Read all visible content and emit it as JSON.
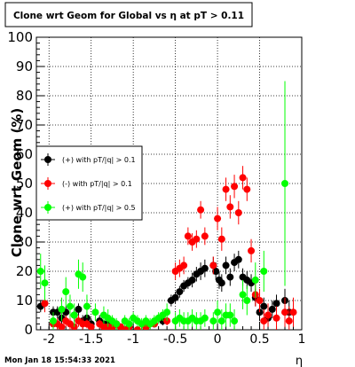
{
  "chart_data": {
    "type": "scatter",
    "title": "Clone wrt Geom for Global vs  η at pT > 0.11",
    "xlabel": "η",
    "ylabel": "Clone wrt Geom (%)",
    "xlim": [
      -2.15,
      1.0
    ],
    "ylim": [
      0,
      100
    ],
    "xticks": [
      "-2",
      "-1.5",
      "-1",
      "-0.5",
      "0",
      "0.5",
      "1"
    ],
    "yticks": [
      "0",
      "10",
      "20",
      "30",
      "40",
      "50",
      "60",
      "70",
      "80",
      "90",
      "100"
    ],
    "grid": true,
    "legend_position": "middle-left",
    "timestamp": "Mon Jan 18 15:54:33 2021",
    "series": [
      {
        "name": "(+) with pT/|q| > 0.1",
        "color": "#000000",
        "points": [
          [
            -2.1,
            8,
            2
          ],
          [
            -1.95,
            6,
            2
          ],
          [
            -1.9,
            6,
            2
          ],
          [
            -1.85,
            4,
            2
          ],
          [
            -1.8,
            6,
            2
          ],
          [
            -1.7,
            5,
            2
          ],
          [
            -1.65,
            7,
            2
          ],
          [
            -1.6,
            3,
            2
          ],
          [
            -1.55,
            4,
            2
          ],
          [
            -1.5,
            2,
            2
          ],
          [
            -1.4,
            3,
            2
          ],
          [
            -1.35,
            2,
            1.5
          ],
          [
            -1.3,
            2,
            1.5
          ],
          [
            -1.25,
            1,
            1
          ],
          [
            -1.2,
            2,
            1
          ],
          [
            -1.15,
            1,
            1
          ],
          [
            -1.05,
            1,
            1
          ],
          [
            -0.85,
            1,
            1
          ],
          [
            -0.75,
            2,
            1
          ],
          [
            -0.65,
            3,
            1.5
          ],
          [
            -0.55,
            10,
            2
          ],
          [
            -0.5,
            11,
            2
          ],
          [
            -0.45,
            13,
            2
          ],
          [
            -0.4,
            15,
            2
          ],
          [
            -0.35,
            16,
            2
          ],
          [
            -0.3,
            17,
            2.5
          ],
          [
            -0.25,
            19,
            2.5
          ],
          [
            -0.2,
            20,
            3
          ],
          [
            -0.15,
            21,
            3
          ],
          [
            -0.05,
            22,
            3
          ],
          [
            -0.02,
            20,
            3
          ],
          [
            0.02,
            17,
            3
          ],
          [
            0.05,
            16,
            3
          ],
          [
            0.1,
            22,
            3
          ],
          [
            0.15,
            18,
            3
          ],
          [
            0.2,
            23,
            3
          ],
          [
            0.25,
            24,
            3
          ],
          [
            0.3,
            18,
            3
          ],
          [
            0.35,
            17,
            3
          ],
          [
            0.4,
            16,
            3
          ],
          [
            0.45,
            11,
            3
          ],
          [
            0.5,
            6,
            3
          ],
          [
            0.55,
            8,
            3
          ],
          [
            0.6,
            4,
            3
          ],
          [
            0.65,
            7,
            3
          ],
          [
            0.7,
            9,
            3
          ],
          [
            0.8,
            10,
            4
          ],
          [
            0.85,
            6,
            4
          ]
        ]
      },
      {
        "name": "(-) with pT/|q| > 0.1",
        "color": "#ff0000",
        "points": [
          [
            -2.05,
            9,
            3
          ],
          [
            -1.95,
            2,
            2
          ],
          [
            -1.9,
            2,
            2
          ],
          [
            -1.85,
            1,
            1
          ],
          [
            -1.8,
            3,
            2
          ],
          [
            -1.75,
            2,
            2
          ],
          [
            -1.7,
            1,
            1
          ],
          [
            -1.65,
            3,
            2
          ],
          [
            -1.6,
            2,
            2
          ],
          [
            -1.55,
            2,
            1.5
          ],
          [
            -1.5,
            1,
            1
          ],
          [
            -1.4,
            2,
            1.5
          ],
          [
            -1.35,
            1,
            1
          ],
          [
            -1.3,
            1,
            1
          ],
          [
            -1.25,
            1,
            1
          ],
          [
            -1.15,
            1,
            1
          ],
          [
            -1.1,
            0,
            1
          ],
          [
            -1.05,
            1,
            1
          ],
          [
            -0.95,
            0,
            1
          ],
          [
            -0.85,
            1,
            1
          ],
          [
            -0.75,
            2,
            1
          ],
          [
            -0.6,
            3,
            1.5
          ],
          [
            -0.5,
            20,
            3
          ],
          [
            -0.45,
            21,
            3
          ],
          [
            -0.4,
            22,
            3
          ],
          [
            -0.35,
            32,
            3
          ],
          [
            -0.3,
            30,
            3
          ],
          [
            -0.25,
            31,
            3
          ],
          [
            -0.2,
            41,
            3
          ],
          [
            -0.15,
            32,
            3
          ],
          [
            -0.05,
            22,
            3
          ],
          [
            0.0,
            38,
            4
          ],
          [
            0.05,
            31,
            4
          ],
          [
            0.1,
            48,
            4
          ],
          [
            0.15,
            42,
            4
          ],
          [
            0.2,
            49,
            4
          ],
          [
            0.25,
            40,
            4
          ],
          [
            0.3,
            52,
            4
          ],
          [
            0.35,
            48,
            4
          ],
          [
            0.4,
            27,
            4
          ],
          [
            0.45,
            12,
            4
          ],
          [
            0.5,
            10,
            4
          ],
          [
            0.55,
            3,
            4
          ],
          [
            0.6,
            5,
            4
          ],
          [
            0.7,
            4,
            4
          ],
          [
            0.8,
            6,
            5
          ],
          [
            0.85,
            3,
            5
          ],
          [
            0.9,
            6,
            5
          ]
        ]
      },
      {
        "name": "(+) with pT/|q| > 0.5",
        "color": "#00ff00",
        "points": [
          [
            -2.1,
            20,
            6
          ],
          [
            -2.05,
            16,
            6
          ],
          [
            -1.95,
            3,
            3
          ],
          [
            -1.85,
            7,
            4
          ],
          [
            -1.8,
            13,
            5
          ],
          [
            -1.75,
            8,
            4
          ],
          [
            -1.7,
            5,
            4
          ],
          [
            -1.65,
            19,
            5
          ],
          [
            -1.6,
            18,
            5
          ],
          [
            -1.55,
            8,
            4
          ],
          [
            -1.45,
            6,
            3
          ],
          [
            -1.35,
            5,
            3
          ],
          [
            -1.3,
            4,
            3
          ],
          [
            -1.25,
            3,
            2
          ],
          [
            -1.2,
            2,
            2
          ],
          [
            -1.1,
            3,
            2
          ],
          [
            -1.05,
            2,
            2
          ],
          [
            -1.0,
            4,
            2
          ],
          [
            -0.95,
            3,
            2
          ],
          [
            -0.9,
            2,
            2
          ],
          [
            -0.85,
            3,
            2
          ],
          [
            -0.8,
            2,
            2
          ],
          [
            -0.75,
            3,
            2
          ],
          [
            -0.7,
            4,
            2
          ],
          [
            -0.65,
            5,
            2
          ],
          [
            -0.6,
            6,
            3
          ],
          [
            -0.5,
            3,
            3
          ],
          [
            -0.45,
            4,
            3
          ],
          [
            -0.4,
            3,
            3
          ],
          [
            -0.35,
            3,
            3
          ],
          [
            -0.3,
            4,
            3
          ],
          [
            -0.25,
            3,
            3
          ],
          [
            -0.2,
            3,
            3
          ],
          [
            -0.15,
            4,
            3
          ],
          [
            -0.05,
            3,
            3
          ],
          [
            0.0,
            6,
            4
          ],
          [
            0.05,
            3,
            4
          ],
          [
            0.1,
            5,
            4
          ],
          [
            0.15,
            5,
            4
          ],
          [
            0.2,
            3,
            4
          ],
          [
            0.3,
            12,
            5
          ],
          [
            0.35,
            10,
            5
          ],
          [
            0.45,
            17,
            6
          ],
          [
            0.55,
            20,
            7
          ],
          [
            0.8,
            50,
            35
          ]
        ]
      }
    ]
  }
}
